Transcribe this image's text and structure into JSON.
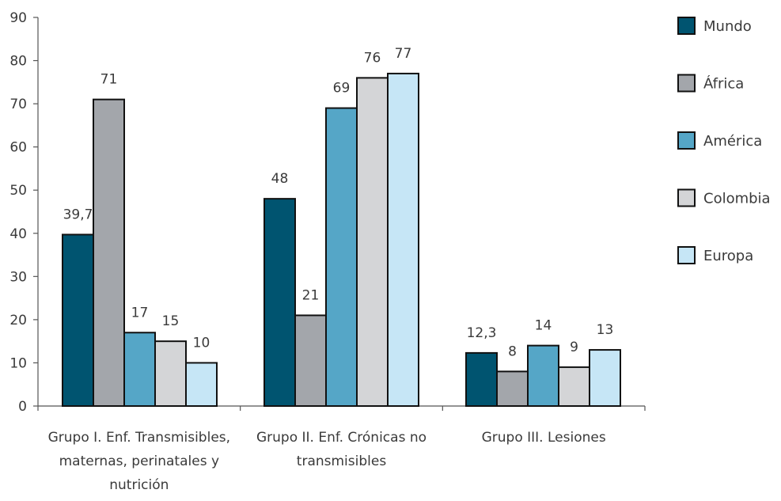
{
  "chart_data": {
    "type": "bar",
    "ylim": [
      0,
      90
    ],
    "yticks": [
      0,
      10,
      20,
      30,
      40,
      50,
      60,
      70,
      80,
      90
    ],
    "categories": [
      [
        "Grupo I. Enf. Transmisibles,",
        "maternas, perinatales y",
        "nutrición"
      ],
      [
        "Grupo II. Enf. Crónicas no",
        "transmisibles"
      ],
      [
        "Grupo III. Lesiones"
      ]
    ],
    "series": [
      {
        "name": "Mundo",
        "color": "#005470",
        "values": [
          39.7,
          48,
          12.3
        ],
        "labels": [
          "39,7",
          "48",
          "12,3"
        ]
      },
      {
        "name": "África",
        "color": "#a3a6ab",
        "values": [
          71,
          21,
          8
        ],
        "labels": [
          "71",
          "21",
          "8"
        ]
      },
      {
        "name": "América",
        "color": "#55a6c7",
        "values": [
          17,
          69,
          14
        ],
        "labels": [
          "17",
          "69",
          "14"
        ]
      },
      {
        "name": "Colombia",
        "color": "#d4d5d7",
        "values": [
          15,
          76,
          9
        ],
        "labels": [
          "15",
          "76",
          "9"
        ]
      },
      {
        "name": "Europa",
        "color": "#c6e6f6",
        "values": [
          10,
          77,
          13
        ],
        "labels": [
          "10",
          "77",
          "13"
        ]
      }
    ],
    "legend": "right",
    "grid": false
  }
}
